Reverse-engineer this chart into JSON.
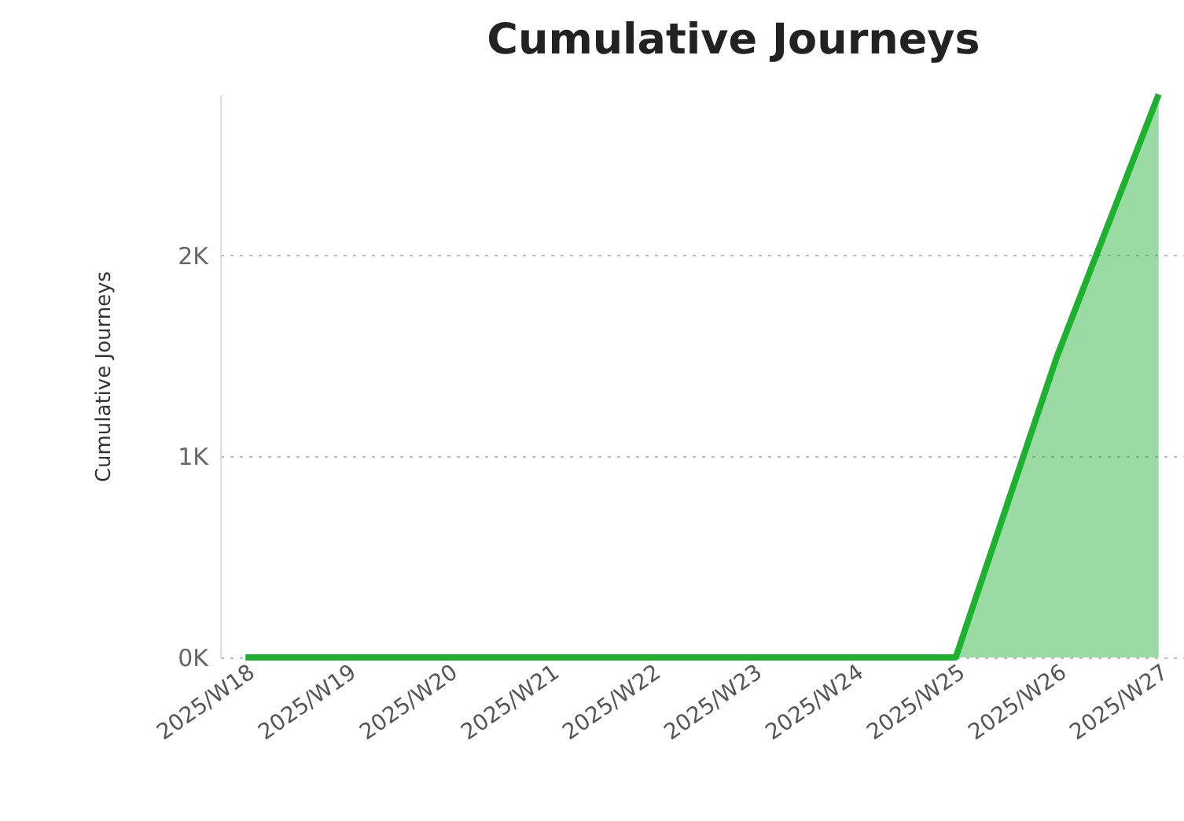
{
  "chart_data": {
    "type": "area",
    "title": "Cumulative Journeys",
    "ylabel": "Cumulative Journeys",
    "categories": [
      "2025/W18",
      "2025/W19",
      "2025/W20",
      "2025/W21",
      "2025/W22",
      "2025/W23",
      "2025/W24",
      "2025/W25",
      "2025/W26",
      "2025/W27"
    ],
    "series": [
      {
        "color": "#1fb032",
        "values": [
          0,
          0,
          0,
          0,
          0,
          0,
          0,
          0,
          1500,
          2800
        ]
      }
    ],
    "ylim": [
      0,
      2800
    ],
    "yticks": [
      {
        "value": 0,
        "label": "0K"
      },
      {
        "value": 1000,
        "label": "1K"
      },
      {
        "value": 2000,
        "label": "2K"
      }
    ],
    "grid": "y"
  }
}
